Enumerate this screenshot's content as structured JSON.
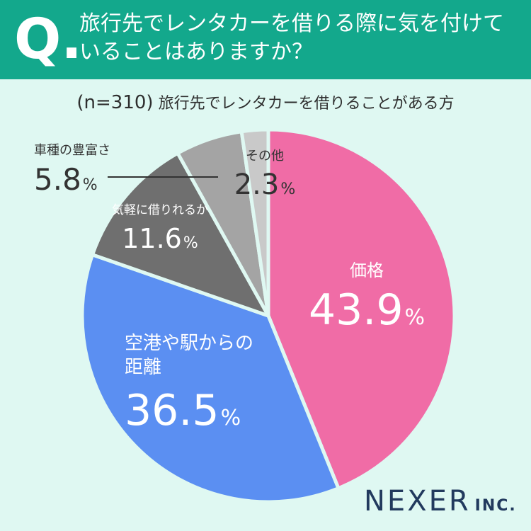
{
  "header": {
    "q_mark": "Q.",
    "question_line1": "旅行先でレンタカーを借りる際に気を付けて",
    "question_line2": "いることはありますか？"
  },
  "sample": {
    "n_label": "(n=310)",
    "description": "旅行先でレンタカーを借りることがある方"
  },
  "colors": {
    "header_bg": "#13a88c",
    "background": "#dff8f2",
    "slice_price": "#f06ca6",
    "slice_distance": "#5b8ff2",
    "slice_easy": "#6f6f6f",
    "slice_variety": "#a4a4a4",
    "slice_other": "#c9c9c9"
  },
  "chart_data": {
    "type": "pie",
    "categories": [
      "価格",
      "空港や駅からの距離",
      "気軽に借りれるか",
      "車種の豊富さ",
      "その他"
    ],
    "values": [
      43.9,
      36.5,
      11.6,
      5.8,
      2.3
    ],
    "unit": "%",
    "start": "12 o'clock",
    "direction": "clockwise"
  },
  "logo": {
    "name": "NEXER",
    "suffix": "INC."
  }
}
